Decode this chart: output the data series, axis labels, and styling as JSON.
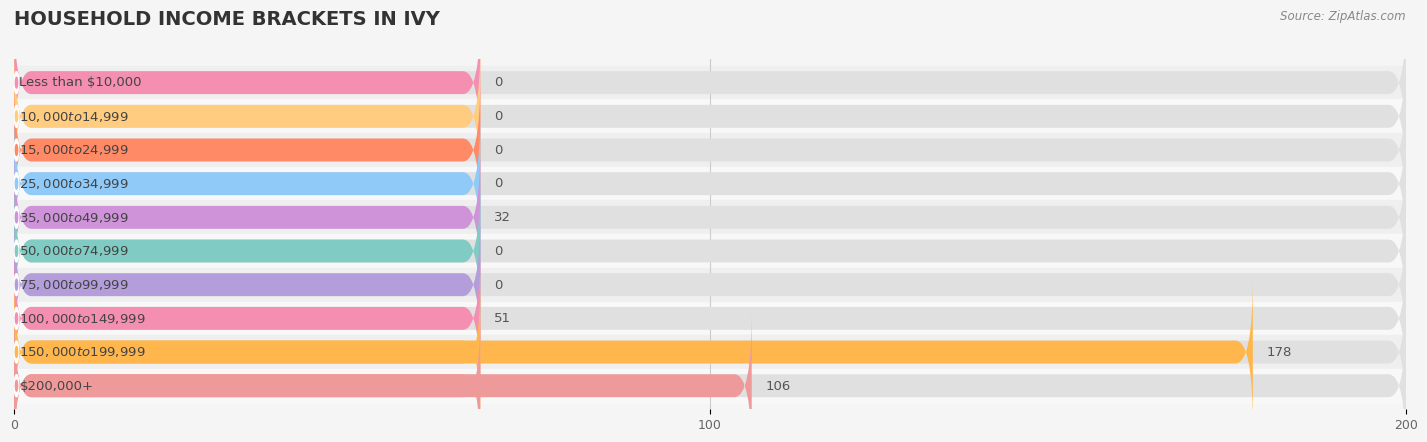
{
  "title": "HOUSEHOLD INCOME BRACKETS IN IVY",
  "source": "Source: ZipAtlas.com",
  "categories": [
    "Less than $10,000",
    "$10,000 to $14,999",
    "$15,000 to $24,999",
    "$25,000 to $34,999",
    "$35,000 to $49,999",
    "$50,000 to $74,999",
    "$75,000 to $99,999",
    "$100,000 to $149,999",
    "$150,000 to $199,999",
    "$200,000+"
  ],
  "values": [
    0,
    0,
    0,
    0,
    32,
    0,
    0,
    51,
    178,
    106
  ],
  "bar_colors": [
    "#f48fb1",
    "#ffcc80",
    "#ff8a65",
    "#90caf9",
    "#ce93d8",
    "#80cbc4",
    "#b39ddb",
    "#f48fb1",
    "#ffb74d",
    "#ef9a9a"
  ],
  "background_color": "#f5f5f5",
  "bar_background_color": "#e0e0e0",
  "xlim": [
    0,
    200
  ],
  "xticks": [
    0,
    100,
    200
  ],
  "title_fontsize": 14,
  "label_fontsize": 9.5,
  "value_fontsize": 9.5,
  "bar_height": 0.68,
  "label_bar_width": 67
}
